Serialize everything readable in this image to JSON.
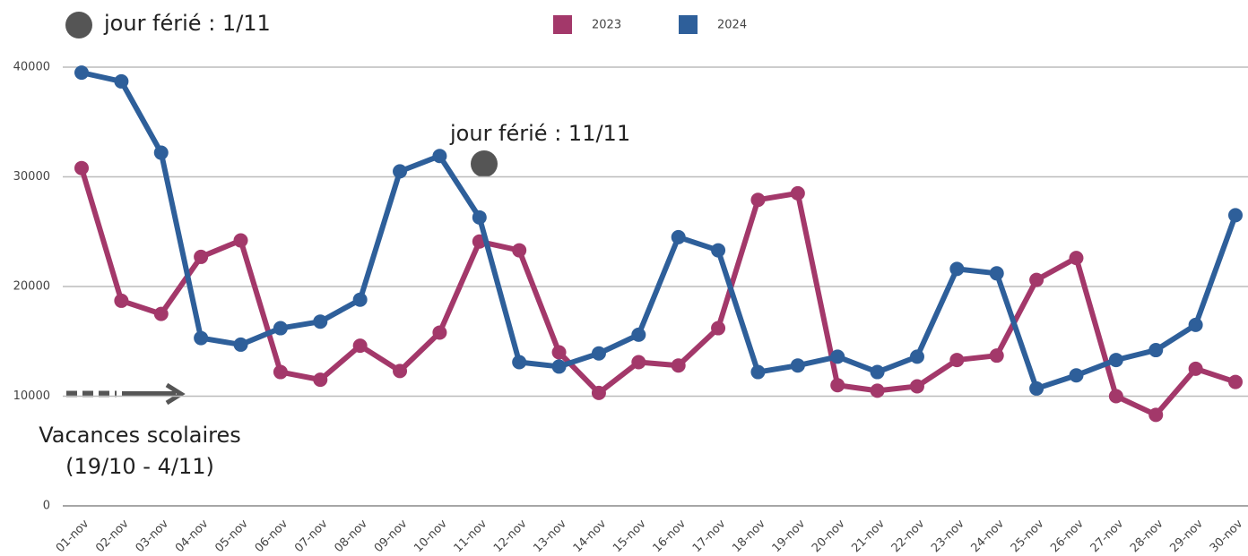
{
  "chart_data": {
    "type": "line",
    "categories": [
      "01-nov",
      "02-nov",
      "03-nov",
      "04-nov",
      "05-nov",
      "06-nov",
      "07-nov",
      "08-nov",
      "09-nov",
      "10-nov",
      "11-nov",
      "12-nov",
      "13-nov",
      "14-nov",
      "15-nov",
      "16-nov",
      "17-nov",
      "18-nov",
      "19-nov",
      "20-nov",
      "21-nov",
      "22-nov",
      "23-nov",
      "24-nov",
      "25-nov",
      "26-nov",
      "27-nov",
      "28-nov",
      "29-nov",
      "30-nov"
    ],
    "series": [
      {
        "name": "2023",
        "color": "#a3386a",
        "values": [
          30800,
          18700,
          17500,
          22700,
          24200,
          12200,
          11500,
          14600,
          12300,
          15800,
          24100,
          23300,
          14000,
          10300,
          13100,
          12800,
          16200,
          27900,
          28500,
          11000,
          10500,
          10900,
          13300,
          13700,
          20600,
          22600,
          10000,
          8300,
          12500,
          11300
        ]
      },
      {
        "name": "2024",
        "color": "#2e5f9a",
        "values": [
          39500,
          38700,
          32200,
          15300,
          14700,
          16200,
          16800,
          18800,
          30500,
          31900,
          26300,
          13100,
          12700,
          13900,
          15600,
          24500,
          23300,
          12200,
          12800,
          13600,
          12200,
          13600,
          21600,
          21200,
          10700,
          11900,
          13300,
          14200,
          16500,
          26500
        ]
      }
    ],
    "ylim": [
      0,
      40000
    ],
    "yticks": [
      0,
      10000,
      20000,
      30000,
      40000
    ],
    "grid": true,
    "legend_position": "top",
    "annotations": [
      "jour férié : 1/11",
      "jour férié : 11/11",
      "Vacances scolaires",
      "(19/10 - 4/11)"
    ]
  }
}
